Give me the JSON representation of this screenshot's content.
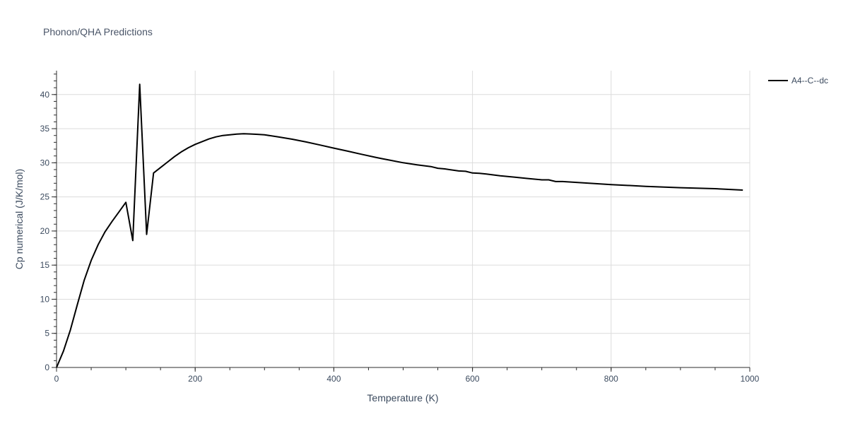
{
  "chart_data": {
    "type": "line",
    "title": "Phonon/QHA Predictions",
    "xlabel": "Temperature (K)",
    "ylabel": "Cp numerical (J/K/mol)",
    "xlim": [
      0,
      1000
    ],
    "ylim": [
      0,
      43.5
    ],
    "xticks": [
      0,
      200,
      400,
      600,
      800,
      1000
    ],
    "yticks": [
      0,
      5,
      10,
      15,
      20,
      25,
      30,
      35,
      40
    ],
    "grid": true,
    "legend_position": "top-right",
    "series": [
      {
        "name": "A4--C--dc",
        "color": "#000000",
        "x": [
          0,
          10,
          20,
          30,
          40,
          50,
          60,
          70,
          80,
          90,
          100,
          110,
          120,
          130,
          140,
          150,
          160,
          170,
          180,
          190,
          200,
          210,
          220,
          230,
          240,
          250,
          260,
          270,
          280,
          290,
          300,
          320,
          340,
          360,
          380,
          400,
          420,
          440,
          460,
          470,
          480,
          500,
          520,
          540,
          550,
          560,
          580,
          590,
          600,
          610,
          620,
          640,
          660,
          680,
          700,
          710,
          720,
          730,
          760,
          800,
          850,
          900,
          950,
          990
        ],
        "y": [
          0,
          2.4,
          5.5,
          9.2,
          12.8,
          15.7,
          18.0,
          19.9,
          21.4,
          22.8,
          24.2,
          18.6,
          41.5,
          19.5,
          28.5,
          29.3,
          30.1,
          30.9,
          31.6,
          32.2,
          32.7,
          33.1,
          33.5,
          33.8,
          34.0,
          34.1,
          34.2,
          34.25,
          34.22,
          34.17,
          34.1,
          33.8,
          33.45,
          33.05,
          32.6,
          32.15,
          31.7,
          31.25,
          30.8,
          30.6,
          30.4,
          30.0,
          29.7,
          29.45,
          29.2,
          29.1,
          28.8,
          28.75,
          28.5,
          28.45,
          28.35,
          28.1,
          27.9,
          27.7,
          27.5,
          27.5,
          27.25,
          27.25,
          27.05,
          26.8,
          26.55,
          26.35,
          26.2,
          26.0
        ]
      }
    ]
  }
}
